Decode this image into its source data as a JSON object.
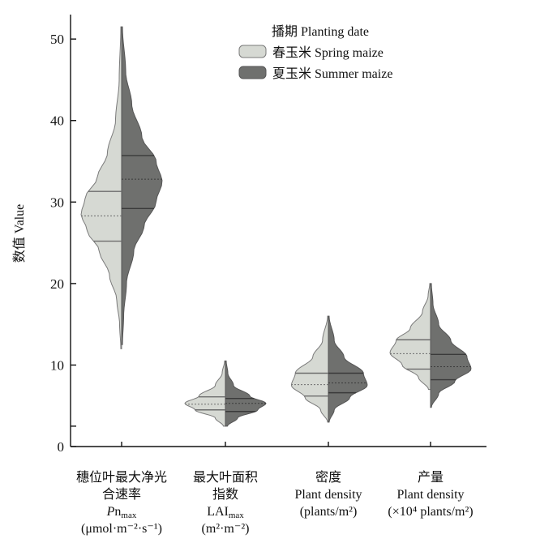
{
  "chart_data": {
    "type": "violin",
    "ylabel": "数值 Value",
    "ylim": [
      0,
      53
    ],
    "yticks": [
      0,
      10,
      20,
      30,
      40,
      50
    ],
    "legend": {
      "title": "播期 Planting date",
      "position": "top-right",
      "entries": [
        "春玉米 Spring maize",
        "夏玉米 Summer maize"
      ]
    },
    "colors": {
      "spring": "#d6d9d3",
      "summer": "#6f706e",
      "outline": "#7a7a7a",
      "spring_lines": "#6d6d6d",
      "summer_lines": "#3a3a3a"
    },
    "categories": [
      {
        "lines": [
          "穗位叶最大净光",
          "合速率",
          "Pn_max",
          "(μmol·m⁻²·s⁻¹)"
        ],
        "spring": {
          "min": 12,
          "max": 51.5,
          "q1": 25.2,
          "median": 28.3,
          "q3": 31.3
        },
        "summer": {
          "min": 12.5,
          "max": 51.5,
          "q1": 29.2,
          "median": 32.8,
          "q3": 35.7
        },
        "spring_profile": [
          [
            12,
            0.02
          ],
          [
            15,
            0.05
          ],
          [
            18,
            0.12
          ],
          [
            21,
            0.3
          ],
          [
            24,
            0.55
          ],
          [
            26.5,
            0.85
          ],
          [
            28.5,
            1.0
          ],
          [
            30.5,
            0.9
          ],
          [
            33,
            0.6
          ],
          [
            36,
            0.35
          ],
          [
            40,
            0.15
          ],
          [
            45,
            0.06
          ],
          [
            51.5,
            0.02
          ]
        ],
        "summer_profile": [
          [
            12.5,
            0.02
          ],
          [
            16,
            0.05
          ],
          [
            20,
            0.12
          ],
          [
            24,
            0.3
          ],
          [
            27,
            0.55
          ],
          [
            30,
            0.85
          ],
          [
            32.5,
            1.0
          ],
          [
            35,
            0.85
          ],
          [
            38,
            0.5
          ],
          [
            42,
            0.25
          ],
          [
            46,
            0.1
          ],
          [
            51.5,
            0.02
          ]
        ]
      },
      {
        "lines": [
          "最大叶面积",
          "指数",
          "LAI_max",
          "(m²·m⁻²)"
        ],
        "spring": {
          "min": 2.5,
          "max": 10.5,
          "q1": 4.5,
          "median": 5.2,
          "q3": 6.1
        },
        "summer": {
          "min": 2.5,
          "max": 10.5,
          "q1": 4.3,
          "median": 5.3,
          "q3": 5.9
        },
        "spring_profile": [
          [
            2.5,
            0.05
          ],
          [
            3.5,
            0.25
          ],
          [
            4.5,
            0.75
          ],
          [
            5.3,
            1.0
          ],
          [
            6.2,
            0.65
          ],
          [
            7.5,
            0.25
          ],
          [
            9,
            0.08
          ],
          [
            10.5,
            0.02
          ]
        ],
        "summer_profile": [
          [
            2.5,
            0.05
          ],
          [
            3.5,
            0.3
          ],
          [
            4.5,
            0.8
          ],
          [
            5.3,
            1.0
          ],
          [
            6.2,
            0.6
          ],
          [
            7.5,
            0.2
          ],
          [
            9,
            0.06
          ],
          [
            10.5,
            0.02
          ]
        ]
      },
      {
        "lines": [
          "密度",
          "Plant density",
          "(plants/m²)"
        ],
        "spring": {
          "min": 3,
          "max": 16,
          "q1": 6.2,
          "median": 7.6,
          "q3": 9
        },
        "summer": {
          "min": 3,
          "max": 16,
          "q1": 6.6,
          "median": 7.8,
          "q3": 9
        },
        "spring_profile": [
          [
            3,
            0.02
          ],
          [
            4.5,
            0.2
          ],
          [
            6,
            0.6
          ],
          [
            7.5,
            0.95
          ],
          [
            9,
            0.85
          ],
          [
            11,
            0.4
          ],
          [
            13,
            0.15
          ],
          [
            16,
            0.02
          ]
        ],
        "summer_profile": [
          [
            3,
            0.02
          ],
          [
            4.5,
            0.15
          ],
          [
            6,
            0.55
          ],
          [
            7.5,
            1.0
          ],
          [
            9,
            0.9
          ],
          [
            11,
            0.4
          ],
          [
            13,
            0.15
          ],
          [
            16,
            0.02
          ]
        ]
      },
      {
        "lines": [
          "产量",
          "Plant density",
          "(×10⁴ plants/m²)"
        ],
        "spring": {
          "min": 7,
          "max": 20,
          "q1": 9.5,
          "median": 11.4,
          "q3": 13.1
        },
        "summer": {
          "min": 4.8,
          "max": 20,
          "q1": 8.2,
          "median": 9.8,
          "q3": 11.3
        },
        "spring_profile": [
          [
            7,
            0.05
          ],
          [
            8.5,
            0.3
          ],
          [
            10,
            0.7
          ],
          [
            11.5,
            1.0
          ],
          [
            13,
            0.85
          ],
          [
            14.5,
            0.5
          ],
          [
            16.5,
            0.2
          ],
          [
            18.5,
            0.06
          ],
          [
            20,
            0.02
          ]
        ],
        "summer_profile": [
          [
            4.8,
            0.02
          ],
          [
            6.5,
            0.2
          ],
          [
            8,
            0.6
          ],
          [
            9.5,
            1.0
          ],
          [
            11,
            0.9
          ],
          [
            13,
            0.5
          ],
          [
            15,
            0.2
          ],
          [
            17.5,
            0.06
          ],
          [
            20,
            0.02
          ]
        ]
      }
    ]
  }
}
